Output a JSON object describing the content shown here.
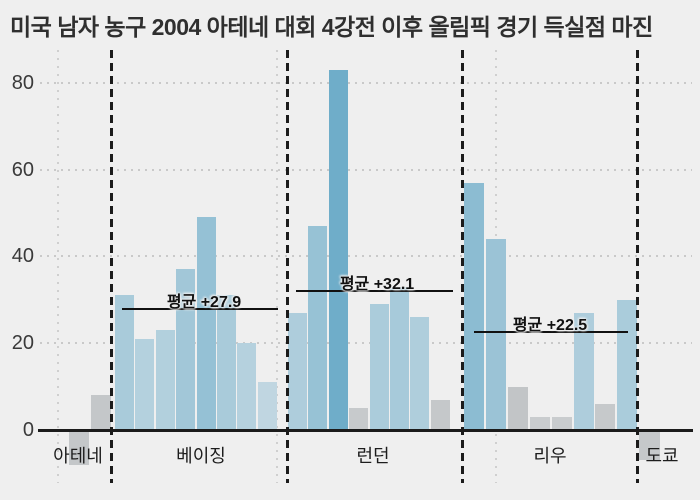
{
  "title": "미국 남자 농구 2004 아테네 대회 4강전 이후 올림픽 경기 득실점 마진",
  "colors": {
    "background": "#efefef",
    "bar_blue_base": "#56a0c2",
    "bar_gray_base": "#5a646c",
    "axis": "#1b1b1b",
    "grid_dot": "#c9c9c9",
    "title_text": "#2f2f2f",
    "tick_text": "#3a3a3a"
  },
  "chart_data": {
    "type": "bar",
    "title": "미국 남자 농구 2004 아테네 대회 4강전 이후 올림픽 경기 득실점 마진",
    "xlabel": "",
    "ylabel": "",
    "ylim": [
      -12,
      86
    ],
    "yticks": [
      0,
      20,
      40,
      60,
      80
    ],
    "grid": "dotted horizontal lines at y ticks; dashed vertical separators between tournaments",
    "legend": null,
    "groups": [
      {
        "label": "아테네",
        "values": [
          -8,
          8
        ],
        "average": null,
        "average_label": null
      },
      {
        "label": "베이징",
        "values": [
          31,
          21,
          23,
          37,
          49,
          31,
          20,
          11
        ],
        "average": 27.9,
        "average_label": "평균 +27.9"
      },
      {
        "label": "런던",
        "values": [
          27,
          47,
          83,
          5,
          29,
          33,
          26,
          7
        ],
        "average": 32.1,
        "average_label": "평균 +32.1"
      },
      {
        "label": "리우",
        "values": [
          57,
          44,
          10,
          3,
          3,
          27,
          6,
          30
        ],
        "average": 22.5,
        "average_label": "평균 +22.5"
      },
      {
        "label": "도쿄",
        "values": [
          -7
        ],
        "average": null,
        "average_label": null
      }
    ],
    "color_rule": "margins with |value| <= 10 drawn gray; larger margins drawn blue; opacity scales with margin size"
  }
}
